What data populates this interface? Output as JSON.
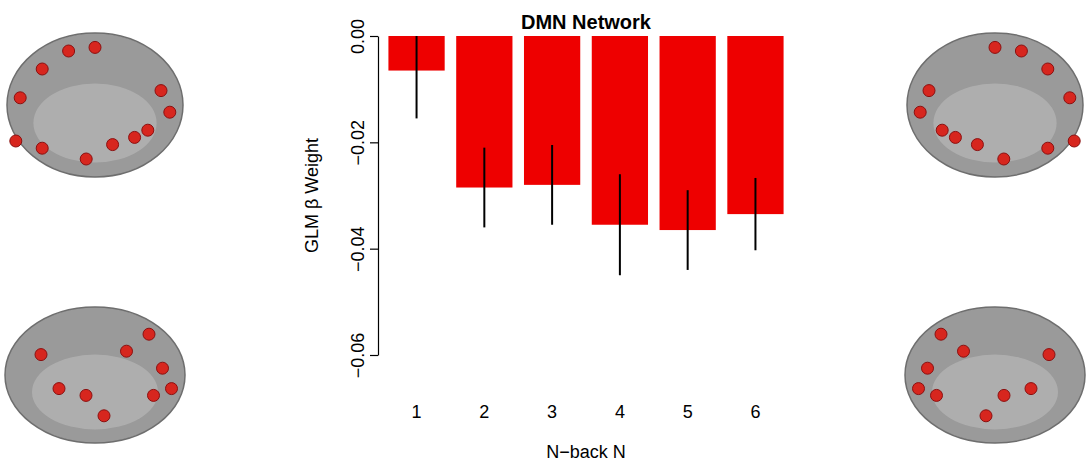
{
  "chart_data": {
    "type": "bar",
    "title": "DMN Network",
    "x_label": "N−back N",
    "y_label": "GLM β Weight",
    "categories": [
      "1",
      "2",
      "3",
      "4",
      "5",
      "6"
    ],
    "values": [
      -0.0065,
      -0.0285,
      -0.028,
      -0.0355,
      -0.0365,
      -0.0335
    ],
    "errors": [
      0.009,
      0.0075,
      0.0075,
      0.0095,
      0.0075,
      0.0068
    ],
    "color": "#ee0000",
    "ylim": [
      -0.06,
      0
    ],
    "yticks": [
      {
        "value": 0,
        "label": "0.00"
      },
      {
        "value": -0.02,
        "label": "−0.02"
      },
      {
        "value": -0.04,
        "label": "−0.04"
      },
      {
        "value": -0.06,
        "label": "−0.06"
      }
    ],
    "grid": false
  }
}
